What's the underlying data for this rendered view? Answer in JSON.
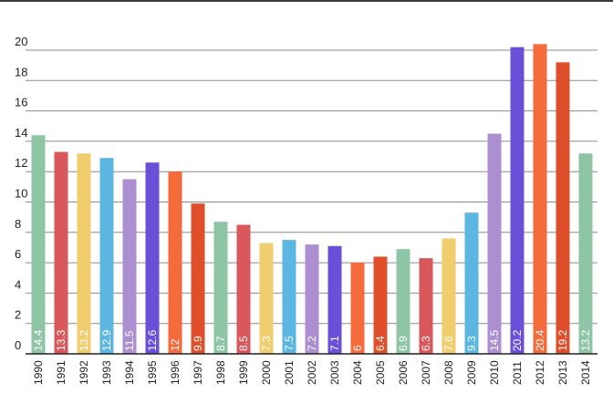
{
  "chart_data": {
    "type": "bar",
    "categories": [
      "1990",
      "1991",
      "1992",
      "1993",
      "1994",
      "1995",
      "1996",
      "1997",
      "1998",
      "1999",
      "2000",
      "2001",
      "2002",
      "2003",
      "2004",
      "2005",
      "2006",
      "2007",
      "2008",
      "2009",
      "2010",
      "2011",
      "2012",
      "2013",
      "2014"
    ],
    "values": [
      14.4,
      13.3,
      13.2,
      12.9,
      11.5,
      12.6,
      12,
      9.9,
      8.7,
      8.5,
      7.3,
      7.5,
      7.2,
      7.1,
      6,
      6.4,
      6.9,
      6.3,
      7.6,
      9.3,
      14.5,
      20.2,
      20.4,
      19.2,
      13.2
    ],
    "data_labels": [
      "14.4",
      "13.3",
      "13.2",
      "12.9",
      "11.5",
      "12.6",
      "12",
      "9.9",
      "8.7",
      "8.5",
      "7.3",
      "7.5",
      "7.2",
      "7.1",
      "6",
      "6.4",
      "6.9",
      "6.3",
      "7.6",
      "9.3",
      "14.5",
      "20.2",
      "20.4",
      "19.2",
      "13.2"
    ],
    "y_ticks": [
      "0",
      "2",
      "4",
      "6",
      "8",
      "10",
      "12",
      "14",
      "16",
      "18",
      "20"
    ],
    "ylim": [
      0,
      20
    ],
    "grid": true,
    "legend": "none",
    "palette": [
      "#8ec5a5",
      "#d9565b",
      "#f0cd6e",
      "#5bb6e2",
      "#ac8fd0",
      "#6a4fd8",
      "#f56b3c",
      "#e04f2c"
    ],
    "title": "",
    "xlabel": "",
    "ylabel": ""
  }
}
